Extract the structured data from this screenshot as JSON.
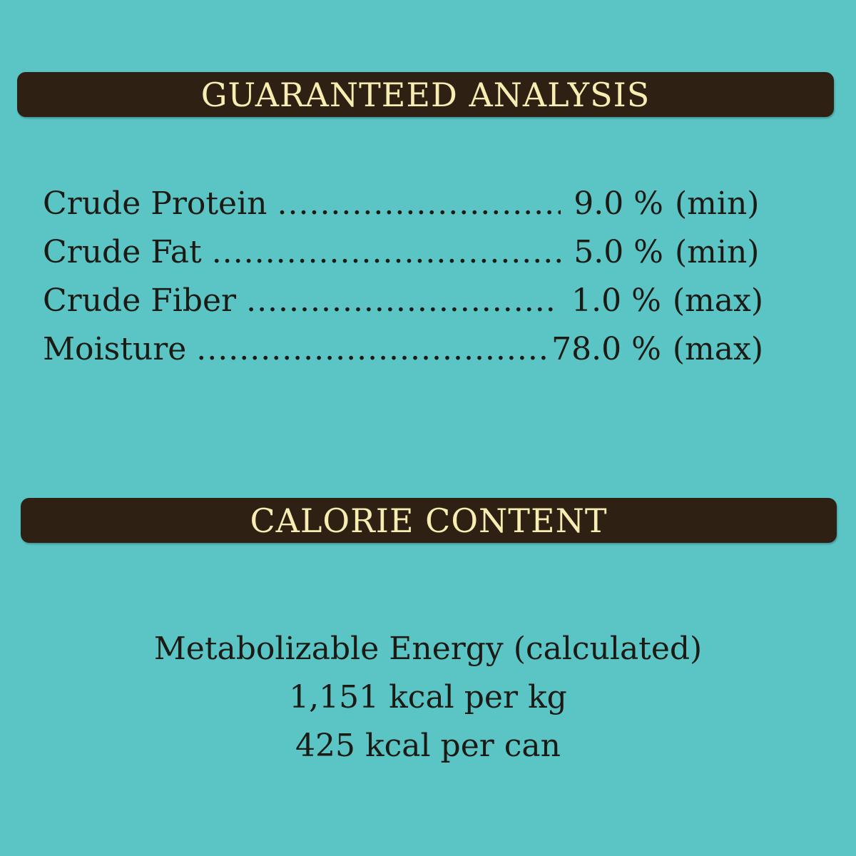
{
  "guaranteed_analysis": {
    "title": "GUARANTEED ANALYSIS",
    "rows": [
      {
        "label": "Crude Protein",
        "value": "9.0 %",
        "basis": "(min)"
      },
      {
        "label": "Crude Fat",
        "value": "5.0 %",
        "basis": "(min)"
      },
      {
        "label": "Crude Fiber",
        "value": "1.0 %",
        "basis": "(max)"
      },
      {
        "label": "Moisture",
        "value": "78.0 %",
        "basis": "(max)"
      }
    ]
  },
  "calorie_content": {
    "title": "CALORIE CONTENT",
    "lines": [
      "Metabolizable Energy (calculated)",
      "1,151 kcal per kg",
      "425 kcal per can"
    ]
  },
  "colors": {
    "background": "#5bc5c6",
    "banner": "#2e2013",
    "banner_text": "#f7edb2",
    "body_text": "#1c1a14"
  }
}
